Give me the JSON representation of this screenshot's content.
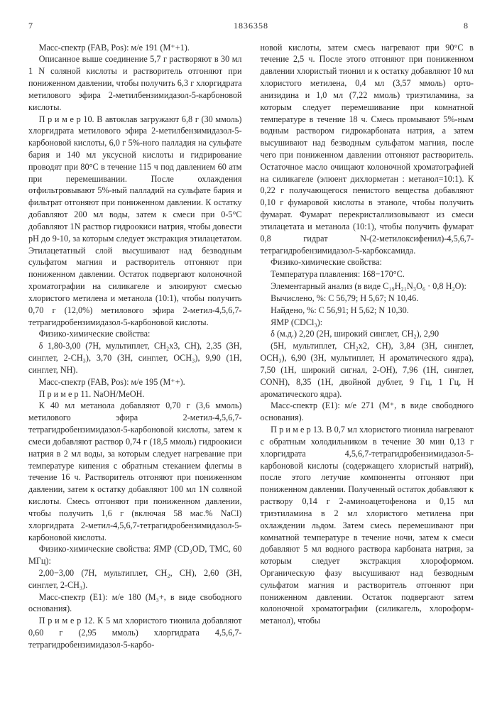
{
  "header": {
    "left_page": "7",
    "doc_number": "1836358",
    "right_page": "8"
  },
  "left_col": {
    "p1": "Масс-спектр (FAB, Pos): м/е 191 (M⁺+1).",
    "p2": "Описанное выше соединение 5,7 г растворяют в 30 мл 1 N соляной кислоты и растворитель отгоняют при пониженном давлении, чтобы получить 6,3 г хлоргидрата метилового эфира 2-метилбензимидазол-5-карбоновой кислоты.",
    "p3": "П р и м е р 10. В автоклав загружают 6,8 г (30 ммоль) хлоргидрата метилового эфира 2-метилбензимидазол-5-карбоновой кислоты, 6,0 г 5%-ного палладия на сульфате бария и 140 мл уксусной кислоты и гидрирование проводят при 80°С в течение 115 ч под давлением 60 атм при перемешивании. После охлаждения отфильтровывают 5%-ный палладий на сульфате бария и фильтрат отгоняют при пониженном давлении. К остатку добавляют 200 мл воды, затем к смеси при 0-5°С добавляют 1N раствор гидроокиси натрия, чтобы довести pH до 9-10, за которым следует экстракция этилацетатом. Этилацетатный слой высушивают над безводным сульфатом магния и растворитель отгоняют при пониженном давлении. Остаток подвергают колоночной хроматографии на силикагеле и элюируют смесью хлористого метилена и метанола (10:1), чтобы получить 0,70 г (12,0%) метилового эфира 2-метил-4,5,6,7-тетрагидробензимидазол-5-карбоновой кислоты.",
    "p4": "Физико-химические свойства:",
    "p5": "δ 1,80-3,00 (7H, мультиплет, CH₂x3, CH), 2,35 (3H, синглет, 2-CH₃), 3,70 (3H, синглет, OCH₃), 9,90 (1H, синглет, NH).",
    "p6": "Масс-спектр (FAB, Pos): м/е 195 (M⁺+).",
    "p7": "П р и м е р 11. NaOH/MeOH.",
    "p8": "К 40 мл метанола добавляют 0,70 г (3,6 ммоль) метилового эфира 2-метил-4,5,6,7-тетрагидробензимидазол-5-карбоновой кислоты, затем к смеси добавляют раствор 0,74 г (18,5 ммоль) гидроокиси натрия в 2 мл воды, за которым следует нагревание при температуре кипения с обратным стеканием флегмы в течение 16 ч. Растворитель отгоняют при пониженном давлении, затем к остатку добавляют 100 мл 1N соляной кислоты. Смесь отгоняют при пониженном давлении, чтобы получить 1,6 г (включая 58 мас.% NaCl) хлоргидрата 2-метил-4,5,6,7-тетрагидробензимидазол-5-карбоновой кислоты.",
    "p9": "Физико-химические свойства: ЯМР (CD₃OD, TMC, 60 МГц):",
    "p10": "2,00−3,00 (7H, мультиплет, CH₂, CH), 2,60 (3H, синглет, 2-CH₃).",
    "p11": "Масс-спектр (E1): м/е 180 (M₃+, в виде свободного основания).",
    "p12": "П р и м е р 12. К 5 мл хлористого тионила добавляют 0,60 г (2,95 ммоль) хлоргидрата 4,5,6,7-тетрагидробензимидазол-5-карбо-"
  },
  "right_col": {
    "p1": "новой кислоты, затем смесь нагревают при 90°С в течение 2,5 ч. После этого отгоняют при пониженном давлении хлористый тионил и к остатку добавляют 10 мл хлористого метилена, 0,4 мл (3,57 ммоль) орто-анизидина и 1,0 мл (7,22 ммоль) триэтиламина, за которым следует перемешивание при комнатной температуре в течение 18 ч. Смесь промывают 5%-ным водным раствором гидрокарбоната натрия, а затем высушивают над безводным сульфатом магния, после чего при пониженном давлении отгоняют растворитель. Остаточное масло очищают колоночной хроматографией на силикагеле (элюент дихлорметан : метанол=10:1). К 0,22 г получающегося пенистого вещества добавляют 0,10 г фумаровой кислоты в этаноле, чтобы получить фумарат. Фумарат перекристаллизовывают из смеси этилацетата и метанола (10:1), чтобы получить фумарат 0,8 гидрат N-(2-метилоксифенил)-4,5,6,7-тетрагидробензимидазол-5-карбоксамида.",
    "p2": "Физико-химические свойства:",
    "p3": "Температура плавления: 168−170°С.",
    "p4": "Элементарный анализ (в виде C₁₉H₂₁N₃O₆ · 0,8 H₂O):",
    "p5": "Вычислено, %: С 56,79; Н 5,67; N 10,46.",
    "p6": "Найдено, %: С 56,91; Н 5,62; N 10,30.",
    "p7": "ЯМР (CDCl₃):",
    "p8": "δ (м.д.) 2,20 (2H, широкий синглет, CH₂), 2,90",
    "p9": "(5H, мультиплет, CH₂x2, CH), 3,84 (3H, синглет, OCH₃), 6,90 (3H, мультиплет, H ароматического ядра), 7,50 (1H, широкий сигнал, 2-OH), 7,96 (1H, синглет, CONH), 8,35 (1H, двойной дублет, 9 Гц, 1 Гц, H ароматического ядра).",
    "p10": "Масс-спектр (E1): м/е 271 (M⁺, в виде свободного основания).",
    "p11": "П р и м е р 13. В 0,7 мл хлористого тионила нагревают с обратным холодильником в течение 30 мин 0,13 г хлоргидрата 4,5,6,7-тетрагидробензимидазол-5-карбоновой кислоты (содержащего хлористый натрий), после этого летучие компоненты отгоняют при пониженном давлении. Полученный остаток добавляют к раствору 0,14 г 2-аминоацетофенона и 0,15 мл триэтиламина в 2 мл хлористого метилена при охлаждении льдом. Затем смесь перемешивают при комнатной температуре в течение ночи, затем к смеси добавляют 5 мл водного раствора карбоната натрия, за которым следует экстракция хлороформом. Органическую фазу высушивают над безводным сульфатом магния и растворитель отгоняют при пониженном давлении. Остаток подвергают затем колоночной хроматографии (силикагель, хлороформ-метанол), чтобы"
  }
}
